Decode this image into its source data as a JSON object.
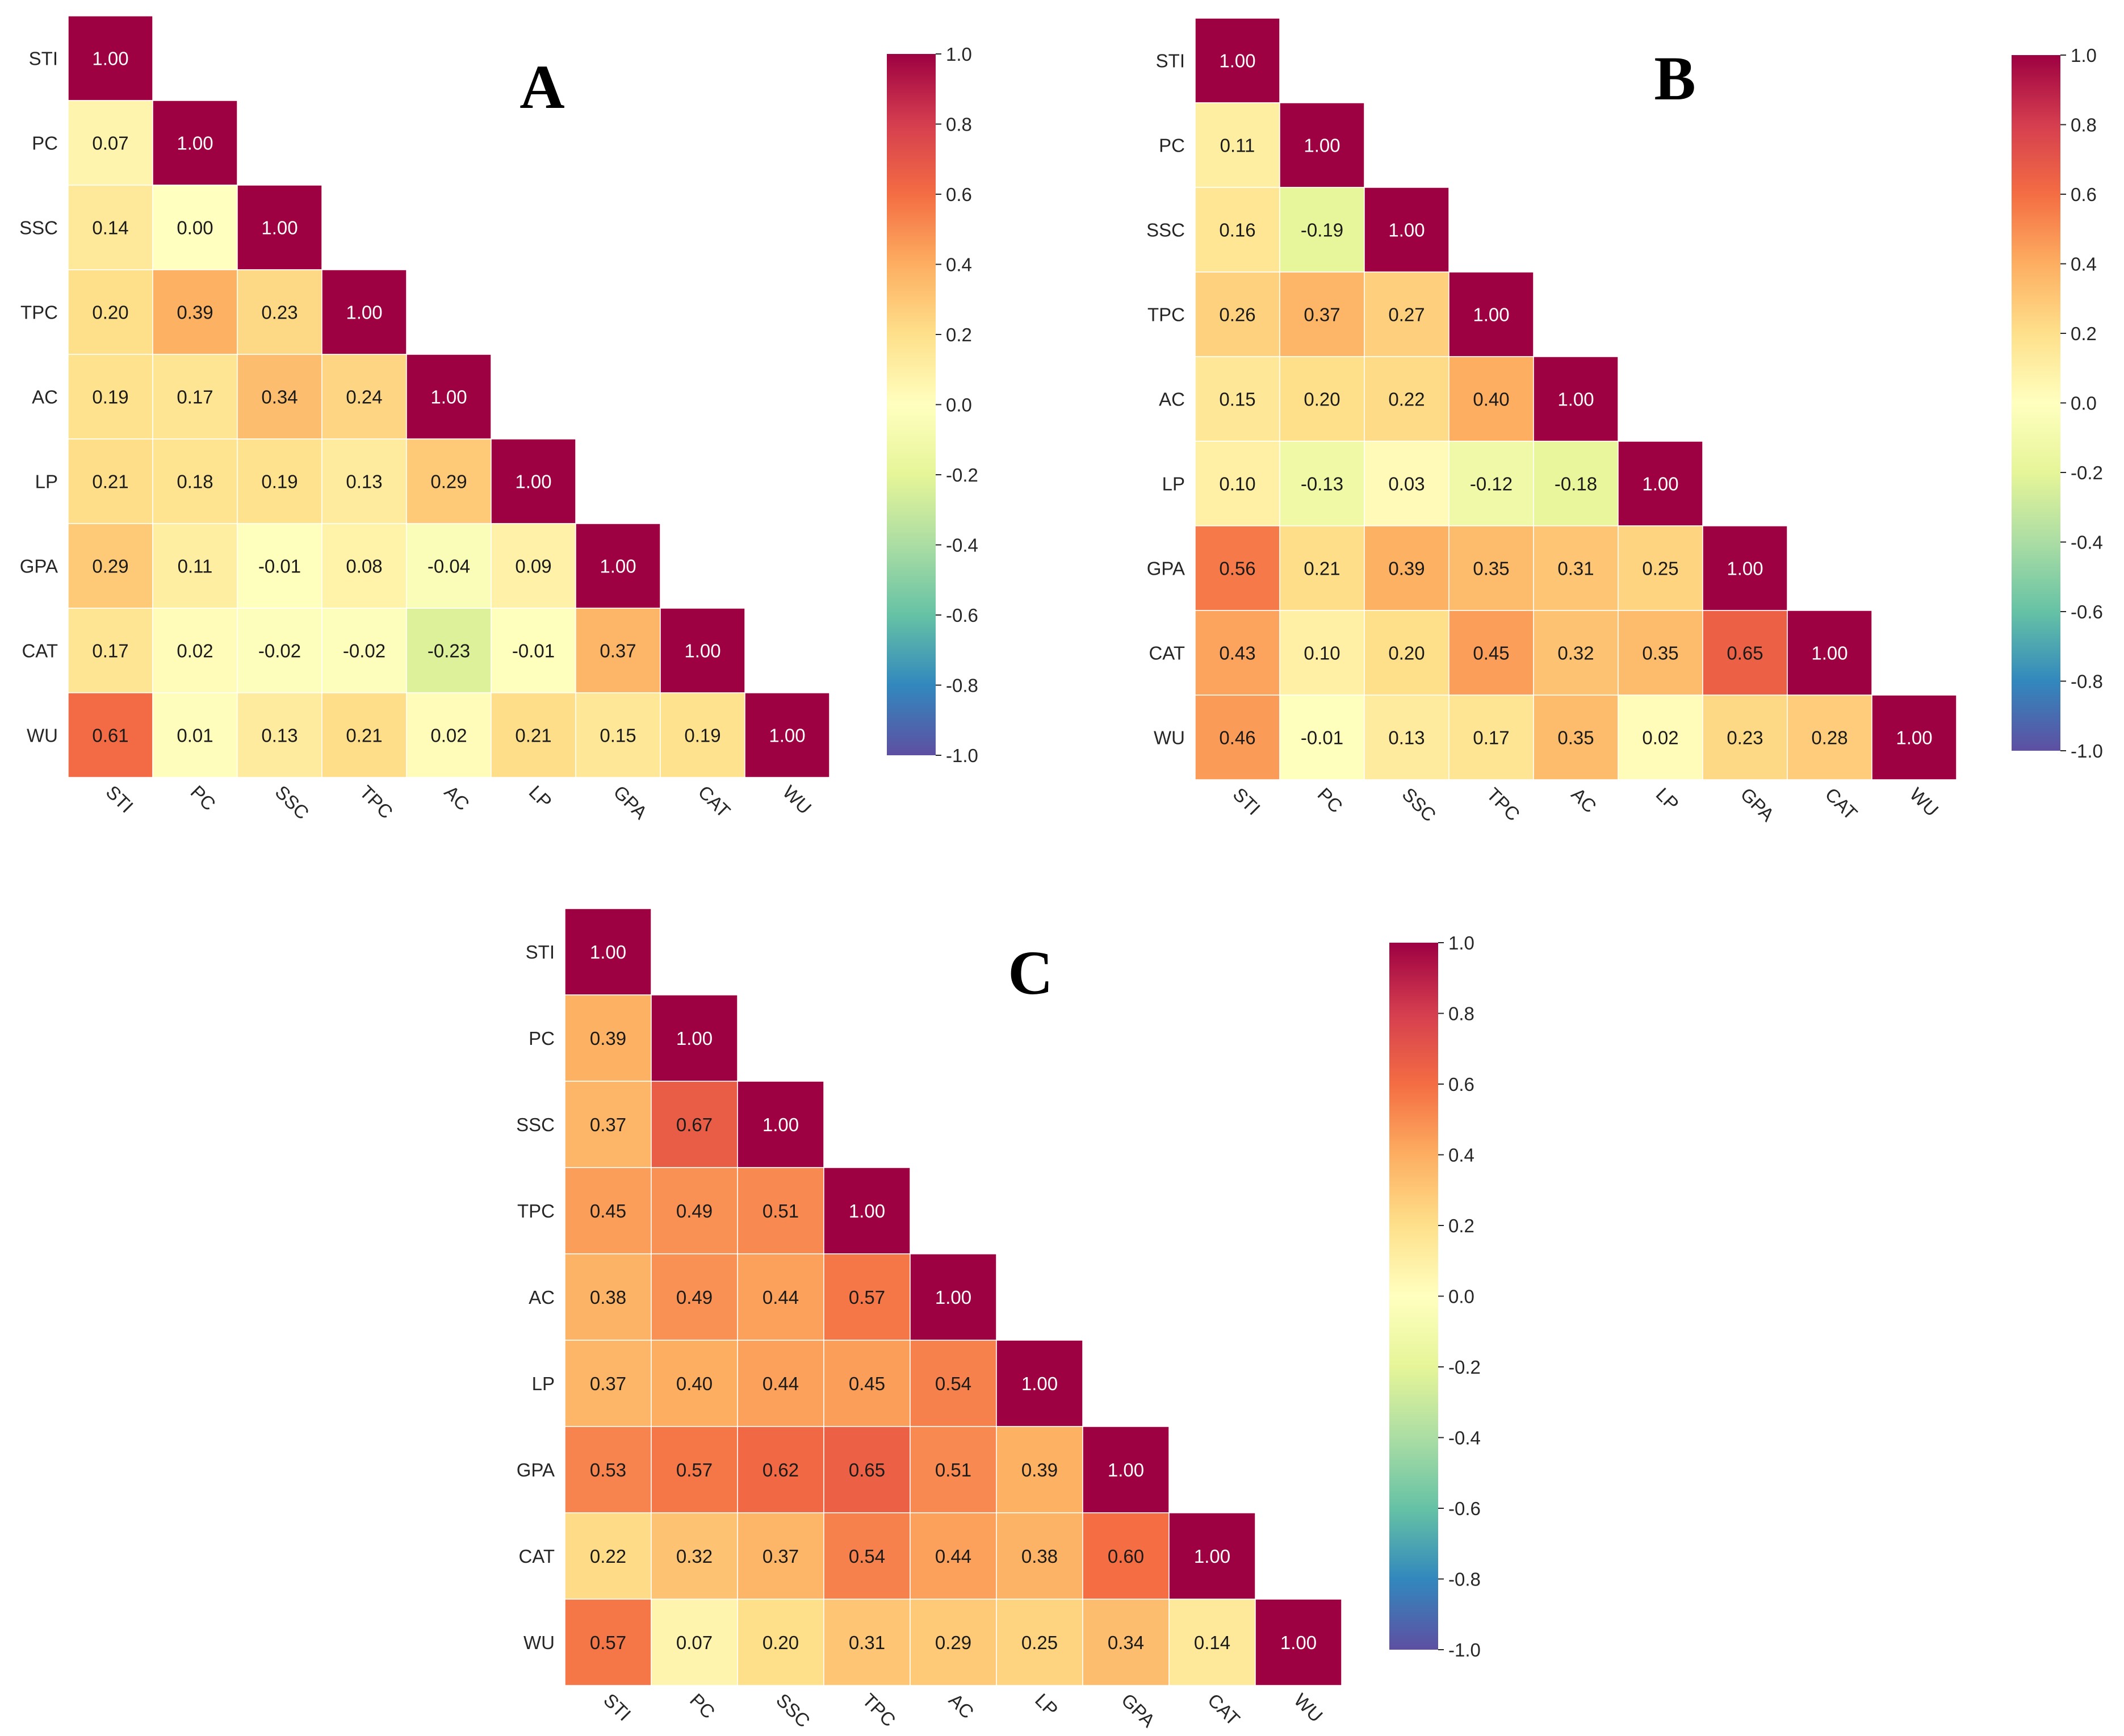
{
  "chart_data": [
    {
      "type": "heatmap",
      "panel": "A",
      "title": "A",
      "variables": [
        "STI",
        "PC",
        "SSC",
        "TPC",
        "AC",
        "LP",
        "GPA",
        "CAT",
        "WU"
      ],
      "matrix_lower": [
        [
          "1.00"
        ],
        [
          "0.07",
          "1.00"
        ],
        [
          "0.14",
          "0.00",
          "1.00"
        ],
        [
          "0.20",
          "0.39",
          "0.23",
          "1.00"
        ],
        [
          "0.19",
          "0.17",
          "0.34",
          "0.24",
          "1.00"
        ],
        [
          "0.21",
          "0.18",
          "0.19",
          "0.13",
          "0.29",
          "1.00"
        ],
        [
          "0.29",
          "0.11",
          "-0.01",
          "0.08",
          "-0.04",
          "0.09",
          "1.00"
        ],
        [
          "0.17",
          "0.02",
          "-0.02",
          "-0.02",
          "-0.23",
          "-0.01",
          "0.37",
          "1.00"
        ],
        [
          "0.61",
          "0.01",
          "0.13",
          "0.21",
          "0.02",
          "0.21",
          "0.15",
          "0.19",
          "1.00"
        ]
      ],
      "colorbar": {
        "range": [
          -1.0,
          1.0
        ],
        "ticks": [
          "1.0",
          "0.8",
          "0.6",
          "0.4",
          "0.2",
          "0.0",
          "-0.2",
          "-0.4",
          "-0.6",
          "-0.8",
          "-1.0"
        ]
      }
    },
    {
      "type": "heatmap",
      "panel": "B",
      "title": "B",
      "variables": [
        "STI",
        "PC",
        "SSC",
        "TPC",
        "AC",
        "LP",
        "GPA",
        "CAT",
        "WU"
      ],
      "matrix_lower": [
        [
          "1.00"
        ],
        [
          "0.11",
          "1.00"
        ],
        [
          "0.16",
          "-0.19",
          "1.00"
        ],
        [
          "0.26",
          "0.37",
          "0.27",
          "1.00"
        ],
        [
          "0.15",
          "0.20",
          "0.22",
          "0.40",
          "1.00"
        ],
        [
          "0.10",
          "-0.13",
          "0.03",
          "-0.12",
          "-0.18",
          "1.00"
        ],
        [
          "0.56",
          "0.21",
          "0.39",
          "0.35",
          "0.31",
          "0.25",
          "1.00"
        ],
        [
          "0.43",
          "0.10",
          "0.20",
          "0.45",
          "0.32",
          "0.35",
          "0.65",
          "1.00"
        ],
        [
          "0.46",
          "-0.01",
          "0.13",
          "0.17",
          "0.35",
          "0.02",
          "0.23",
          "0.28",
          "1.00"
        ]
      ],
      "colorbar": {
        "range": [
          -1.0,
          1.0
        ],
        "ticks": [
          "1.0",
          "0.8",
          "0.6",
          "0.4",
          "0.2",
          "0.0",
          "-0.2",
          "-0.4",
          "-0.6",
          "-0.8",
          "-1.0"
        ]
      }
    },
    {
      "type": "heatmap",
      "panel": "C",
      "title": "C",
      "variables": [
        "STI",
        "PC",
        "SSC",
        "TPC",
        "AC",
        "LP",
        "GPA",
        "CAT",
        "WU"
      ],
      "matrix_lower": [
        [
          "1.00"
        ],
        [
          "0.39",
          "1.00"
        ],
        [
          "0.37",
          "0.67",
          "1.00"
        ],
        [
          "0.45",
          "0.49",
          "0.51",
          "1.00"
        ],
        [
          "0.38",
          "0.49",
          "0.44",
          "0.57",
          "1.00"
        ],
        [
          "0.37",
          "0.40",
          "0.44",
          "0.45",
          "0.54",
          "1.00"
        ],
        [
          "0.53",
          "0.57",
          "0.62",
          "0.65",
          "0.51",
          "0.39",
          "1.00"
        ],
        [
          "0.22",
          "0.32",
          "0.37",
          "0.54",
          "0.44",
          "0.38",
          "0.60",
          "1.00"
        ],
        [
          "0.57",
          "0.07",
          "0.20",
          "0.31",
          "0.29",
          "0.25",
          "0.34",
          "0.14",
          "1.00"
        ]
      ],
      "colorbar": {
        "range": [
          -1.0,
          1.0
        ],
        "ticks": [
          "1.0",
          "0.8",
          "0.6",
          "0.4",
          "0.2",
          "0.0",
          "-0.2",
          "-0.4",
          "-0.6",
          "-0.8",
          "-1.0"
        ]
      }
    }
  ]
}
